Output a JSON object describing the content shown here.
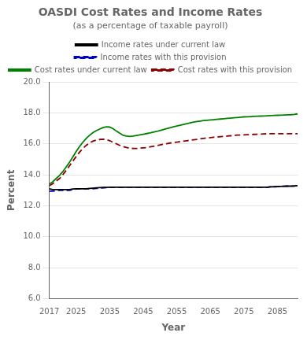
{
  "chart_data": {
    "type": "line",
    "title": "OASDI Cost Rates and Income Rates",
    "subtitle": "(as a percentage of taxable payroll)",
    "xlabel": "Year",
    "ylabel": "Percent",
    "xlim": [
      2017,
      2091
    ],
    "ylim": [
      6.0,
      20.0
    ],
    "xticks": [
      2017,
      2025,
      2035,
      2045,
      2055,
      2065,
      2075,
      2085
    ],
    "yticks": [
      {
        "value": 6.0,
        "label": "6.0"
      },
      {
        "value": 8.0,
        "label": "8.0"
      },
      {
        "value": 10.0,
        "label": "10.0"
      },
      {
        "value": 12.0,
        "label": "12.0"
      },
      {
        "value": 14.0,
        "label": "14.0"
      },
      {
        "value": 16.0,
        "label": "16.0"
      },
      {
        "value": 18.0,
        "label": "18.0"
      },
      {
        "value": 20.0,
        "label": "20.0"
      }
    ],
    "grid": "y",
    "legend": "top",
    "x": [
      2017,
      2018,
      2019,
      2020,
      2021,
      2022,
      2023,
      2024,
      2025,
      2026,
      2027,
      2028,
      2029,
      2030,
      2031,
      2032,
      2033,
      2034,
      2035,
      2036,
      2037,
      2038,
      2039,
      2040,
      2041,
      2042,
      2043,
      2044,
      2045,
      2046,
      2047,
      2048,
      2049,
      2050,
      2051,
      2052,
      2053,
      2054,
      2055,
      2056,
      2057,
      2058,
      2059,
      2060,
      2061,
      2062,
      2063,
      2064,
      2065,
      2066,
      2067,
      2068,
      2069,
      2070,
      2071,
      2072,
      2073,
      2074,
      2075,
      2076,
      2077,
      2078,
      2079,
      2080,
      2081,
      2082,
      2083,
      2084,
      2085,
      2086,
      2087,
      2088,
      2089,
      2090,
      2091
    ],
    "series": [
      {
        "name": "Income rates under current law",
        "color": "#000000",
        "line_style": "solid",
        "values": [
          13.1,
          13.05,
          13.05,
          13.05,
          13.05,
          13.05,
          13.05,
          13.08,
          13.1,
          13.1,
          13.1,
          13.1,
          13.12,
          13.14,
          13.16,
          13.17,
          13.18,
          13.19,
          13.2,
          13.2,
          13.2,
          13.2,
          13.2,
          13.2,
          13.2,
          13.2,
          13.2,
          13.2,
          13.2,
          13.2,
          13.2,
          13.2,
          13.2,
          13.2,
          13.2,
          13.2,
          13.2,
          13.2,
          13.2,
          13.2,
          13.2,
          13.2,
          13.2,
          13.2,
          13.2,
          13.2,
          13.2,
          13.2,
          13.2,
          13.2,
          13.2,
          13.2,
          13.2,
          13.2,
          13.2,
          13.2,
          13.2,
          13.2,
          13.2,
          13.2,
          13.2,
          13.2,
          13.2,
          13.2,
          13.2,
          13.2,
          13.22,
          13.23,
          13.24,
          13.25,
          13.26,
          13.27,
          13.27,
          13.28,
          13.3
        ]
      },
      {
        "name": "Income rates with this provision",
        "color": "#0000cc",
        "line_style": "dashed",
        "values": [
          12.95,
          12.95,
          12.97,
          13.0,
          13.0,
          13.0,
          13.0,
          13.05,
          13.08,
          13.1,
          13.1,
          13.1,
          13.1,
          13.1,
          13.12,
          13.14,
          13.16,
          13.18,
          13.2,
          13.2,
          13.2,
          13.2,
          13.2,
          13.2,
          13.2,
          13.2,
          13.2,
          13.2,
          13.2,
          13.2,
          13.2,
          13.2,
          13.2,
          13.2,
          13.2,
          13.2,
          13.2,
          13.2,
          13.2,
          13.2,
          13.2,
          13.2,
          13.2,
          13.2,
          13.2,
          13.2,
          13.2,
          13.2,
          13.2,
          13.2,
          13.2,
          13.2,
          13.2,
          13.2,
          13.2,
          13.2,
          13.2,
          13.2,
          13.2,
          13.2,
          13.2,
          13.2,
          13.2,
          13.2,
          13.2,
          13.2,
          13.22,
          13.23,
          13.24,
          13.25,
          13.26,
          13.27,
          13.27,
          13.28,
          13.3
        ]
      },
      {
        "name": "Cost rates under current law",
        "color": "#008000",
        "line_style": "solid",
        "values": [
          13.4,
          13.55,
          13.75,
          13.95,
          14.2,
          14.5,
          14.8,
          15.15,
          15.5,
          15.82,
          16.1,
          16.35,
          16.55,
          16.72,
          16.85,
          16.95,
          17.05,
          17.1,
          17.08,
          16.98,
          16.82,
          16.68,
          16.55,
          16.5,
          16.48,
          16.5,
          16.54,
          16.58,
          16.62,
          16.66,
          16.7,
          16.75,
          16.8,
          16.86,
          16.92,
          16.98,
          17.04,
          17.1,
          17.15,
          17.2,
          17.25,
          17.3,
          17.35,
          17.4,
          17.44,
          17.47,
          17.5,
          17.52,
          17.54,
          17.56,
          17.58,
          17.6,
          17.62,
          17.64,
          17.66,
          17.68,
          17.7,
          17.72,
          17.74,
          17.75,
          17.76,
          17.77,
          17.78,
          17.79,
          17.8,
          17.81,
          17.82,
          17.83,
          17.84,
          17.85,
          17.86,
          17.87,
          17.88,
          17.9,
          17.93
        ]
      },
      {
        "name": "Cost rates with this provision",
        "color": "#8b0000",
        "line_style": "dashed",
        "values": [
          13.3,
          13.42,
          13.6,
          13.75,
          14.0,
          14.28,
          14.58,
          14.88,
          15.18,
          15.46,
          15.7,
          15.9,
          16.06,
          16.17,
          16.24,
          16.28,
          16.3,
          16.28,
          16.2,
          16.1,
          16.0,
          15.9,
          15.82,
          15.76,
          15.72,
          15.7,
          15.7,
          15.72,
          15.74,
          15.76,
          15.8,
          15.84,
          15.88,
          15.93,
          15.97,
          16.01,
          16.05,
          16.08,
          16.11,
          16.14,
          16.17,
          16.2,
          16.23,
          16.26,
          16.29,
          16.32,
          16.35,
          16.38,
          16.4,
          16.42,
          16.44,
          16.46,
          16.48,
          16.5,
          16.52,
          16.54,
          16.56,
          16.57,
          16.58,
          16.59,
          16.6,
          16.61,
          16.62,
          16.63,
          16.64,
          16.65,
          16.65,
          16.65,
          16.65,
          16.65,
          16.65,
          16.65,
          16.65,
          16.65,
          16.65
        ]
      }
    ]
  }
}
